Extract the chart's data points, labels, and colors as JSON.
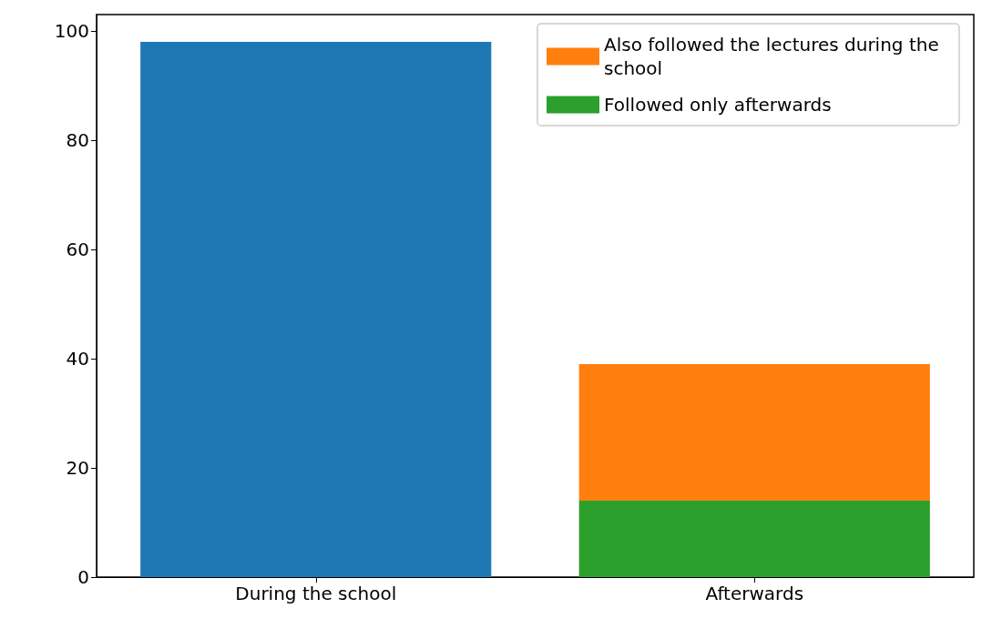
{
  "chart_data": {
    "type": "bar",
    "stacked": true,
    "categories": [
      "During the school",
      "Afterwards"
    ],
    "series": [
      {
        "color": "#1f77b4",
        "values": [
          98,
          null
        ]
      },
      {
        "name": "Followed only afterwards",
        "color": "#2ca02c",
        "values": [
          null,
          14
        ]
      },
      {
        "name": "Also followed the lectures during the school",
        "color": "#ff7f0e",
        "values": [
          null,
          25
        ]
      }
    ],
    "ylim": [
      0,
      103
    ],
    "yticks": [
      0,
      20,
      40,
      60,
      80,
      100
    ],
    "grid": false,
    "legend": "top right"
  }
}
